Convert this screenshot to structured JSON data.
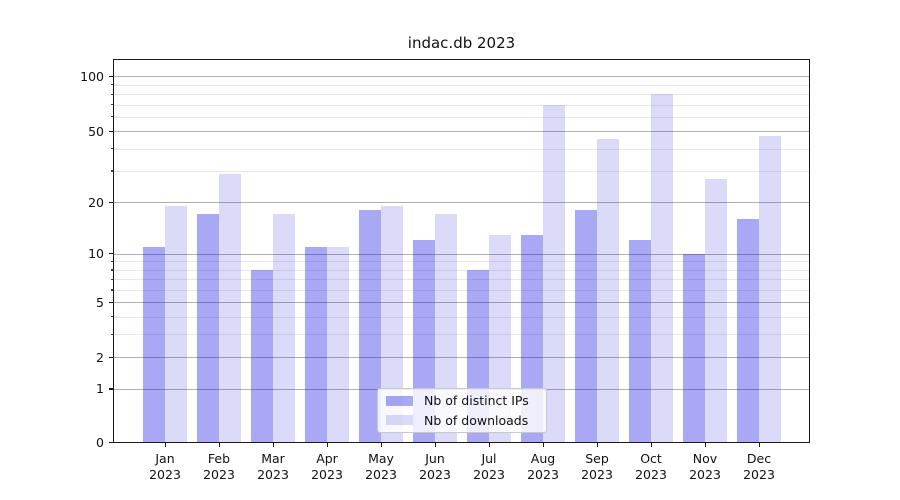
{
  "chart_data": {
    "type": "bar",
    "title": "indac.db 2023",
    "months": [
      "Jan",
      "Feb",
      "Mar",
      "Apr",
      "May",
      "Jun",
      "Jul",
      "Aug",
      "Sep",
      "Oct",
      "Nov",
      "Dec"
    ],
    "year": "2023",
    "categories": [
      "Jan 2023",
      "Feb 2023",
      "Mar 2023",
      "Apr 2023",
      "May 2023",
      "Jun 2023",
      "Jul 2023",
      "Aug 2023",
      "Sep 2023",
      "Oct 2023",
      "Nov 2023",
      "Dec 2023"
    ],
    "series": [
      {
        "name": "Nb of distinct IPs",
        "color": "rgba(0,0,225,0.34)",
        "values": [
          11,
          17,
          8,
          11,
          18,
          12,
          8,
          13,
          18,
          12,
          10,
          16
        ]
      },
      {
        "name": "Nb of downloads",
        "color": "rgba(0,0,210,0.14)",
        "values": [
          19,
          29,
          17,
          11,
          19,
          17,
          13,
          70,
          45,
          80,
          27,
          47
        ]
      }
    ],
    "y_axis": {
      "ticks": [
        0,
        1,
        2,
        5,
        10,
        20,
        50,
        100
      ],
      "minor_ticks": [
        3,
        4,
        6,
        7,
        8,
        9,
        30,
        40,
        60,
        70,
        80,
        90
      ],
      "scale": "log-like (log of value+1)",
      "range": [
        0,
        126
      ]
    },
    "grid": true,
    "legend_position": "lower center"
  }
}
